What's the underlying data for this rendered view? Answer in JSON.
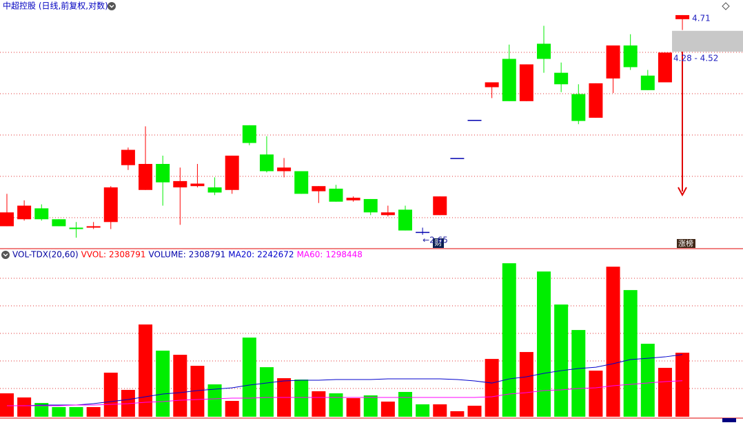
{
  "chart_data": [
    {
      "type": "candlestick",
      "title": "中超控股 (日线,前复权,对数)",
      "log_scale": true,
      "ylim": [
        2.56,
        4.9
      ],
      "up_color": "#ff0000",
      "down_color": "#00ee00",
      "flat_color": "#0000b0",
      "open": [
        2.71,
        2.76,
        2.84,
        2.76,
        2.7,
        2.7,
        2.74,
        3.18,
        2.98,
        3.19,
        3.0,
        3.01,
        3.0,
        2.98,
        3.53,
        3.27,
        3.13,
        3.13,
        2.97,
        2.99,
        2.9,
        2.91,
        2.79,
        2.83,
        2.67,
        2.79,
        3.24,
        3.58,
        3.9,
        4.2,
        3.76,
        4.37,
        4.05,
        3.83,
        3.6,
        3.99,
        4.35,
        4.02,
        3.95,
        4.66
      ],
      "high": [
        2.95,
        2.9,
        2.87,
        2.76,
        2.74,
        2.74,
        3.01,
        3.33,
        3.52,
        3.26,
        3.16,
        3.19,
        3.08,
        3.26,
        3.53,
        3.43,
        3.24,
        3.13,
        3.01,
        3.02,
        2.93,
        2.91,
        2.86,
        2.86,
        2.7,
        2.93,
        3.24,
        3.58,
        3.95,
        4.36,
        4.14,
        4.58,
        4.16,
        3.93,
        3.94,
        4.35,
        4.48,
        4.08,
        4.27,
        4.71
      ],
      "low": [
        2.71,
        2.75,
        2.75,
        2.71,
        2.63,
        2.69,
        2.69,
        3.14,
        2.98,
        2.86,
        2.72,
        3.0,
        2.94,
        2.95,
        3.35,
        3.12,
        3.08,
        2.95,
        2.88,
        2.89,
        2.89,
        2.79,
        2.78,
        2.68,
        2.65,
        2.79,
        3.24,
        3.58,
        3.79,
        3.76,
        3.76,
        4.05,
        3.85,
        3.54,
        3.6,
        3.84,
        4.08,
        3.87,
        3.95,
        4.53
      ],
      "close": [
        2.81,
        2.86,
        2.76,
        2.71,
        2.69,
        2.71,
        3.0,
        3.31,
        3.19,
        3.04,
        3.05,
        3.03,
        2.96,
        3.26,
        3.37,
        3.13,
        3.16,
        2.95,
        3.01,
        2.89,
        2.92,
        2.81,
        2.81,
        2.68,
        2.67,
        2.93,
        3.24,
        3.58,
        3.95,
        3.76,
        4.14,
        4.2,
        3.93,
        3.57,
        3.94,
        4.35,
        4.11,
        3.87,
        4.27,
        4.71
      ],
      "annotations": {
        "high": 4.71,
        "low": {
          "value": 2.65,
          "label": "←2.65"
        },
        "range": {
          "values": [
            4.28,
            4.52
          ],
          "label": "4.28 - 4.52"
        }
      },
      "badges": [
        "财",
        "涨榜"
      ]
    },
    {
      "type": "volume",
      "title": "VOL-TDX(20,60)",
      "ylim": [
        0,
        5590000
      ],
      "values": [
        844000,
        695000,
        497000,
        348000,
        348000,
        348000,
        1589000,
        968000,
        3327000,
        2383000,
        2234000,
        1837000,
        1167000,
        571000,
        2855000,
        1787000,
        1390000,
        1341000,
        919000,
        844000,
        670000,
        770000,
        546000,
        894000,
        447000,
        447000,
        199000,
        397000,
        2085000,
        5536000,
        2334000,
        5238000,
        4047000,
        3128000,
        1663000,
        5412000,
        4568000,
        2632000,
        1763000,
        2308791
      ],
      "indicators": [
        {
          "name": "VVOL:",
          "value": 2308791,
          "color": "#ff0000"
        },
        {
          "name": "VOLUME:",
          "value": 2308791,
          "color": "#0000aa"
        }
      ],
      "series": [
        {
          "name": "MA20:",
          "color": "#0000cc",
          "values": [
            397000,
            397000,
            422000,
            422000,
            422000,
            472000,
            546000,
            621000,
            720000,
            819000,
            869000,
            943000,
            993000,
            1043000,
            1142000,
            1216000,
            1291000,
            1316000,
            1316000,
            1341000,
            1341000,
            1341000,
            1365000,
            1365000,
            1365000,
            1365000,
            1341000,
            1291000,
            1216000,
            1365000,
            1440000,
            1564000,
            1663000,
            1738000,
            1787000,
            1912000,
            2061000,
            2110000,
            2160000,
            2242672
          ]
        },
        {
          "name": "MA60:",
          "color": "#ff00ff",
          "values": [
            397000,
            397000,
            397000,
            397000,
            422000,
            422000,
            447000,
            472000,
            521000,
            546000,
            596000,
            621000,
            645000,
            670000,
            670000,
            695000,
            695000,
            695000,
            695000,
            695000,
            695000,
            695000,
            695000,
            695000,
            695000,
            695000,
            695000,
            695000,
            720000,
            819000,
            869000,
            943000,
            968000,
            1018000,
            1043000,
            1117000,
            1167000,
            1216000,
            1266000,
            1298448
          ]
        }
      ]
    }
  ]
}
